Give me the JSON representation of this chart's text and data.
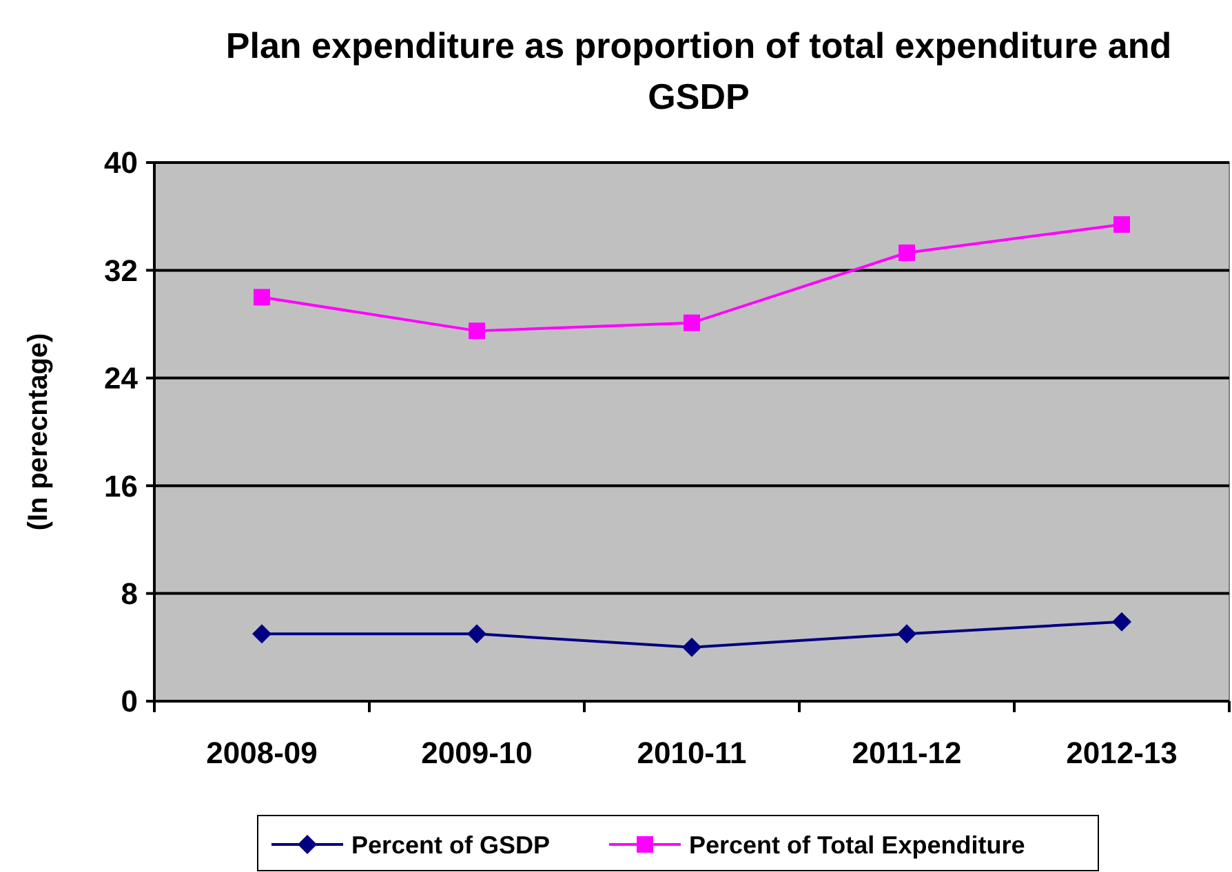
{
  "chart_data": {
    "type": "line",
    "title": "Plan expenditure as proportion of total expenditure and GSDP",
    "ylabel": "(In perecntage)",
    "categories": [
      "2008-09",
      "2009-10",
      "2010-11",
      "2011-12",
      "2012-13"
    ],
    "series": [
      {
        "name": "Percent of GSDP",
        "color": "#000080",
        "marker": "diamond",
        "values": [
          5,
          5,
          4,
          5,
          5.9
        ]
      },
      {
        "name": "Percent of Total Expenditure",
        "color": "#ff00ff",
        "marker": "square",
        "values": [
          30,
          27.5,
          28.1,
          33.3,
          35.4
        ]
      }
    ],
    "ylim": [
      0,
      40
    ],
    "yticks": [
      0,
      8,
      16,
      24,
      32,
      40
    ],
    "grid": "y",
    "legend": "bottom"
  }
}
